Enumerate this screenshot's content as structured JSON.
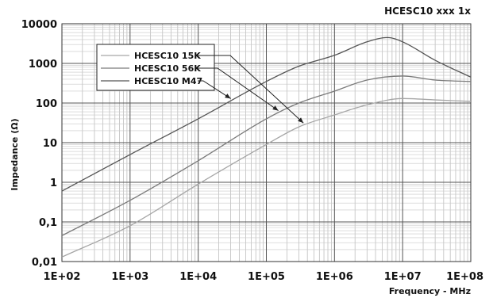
{
  "chart_data": {
    "type": "line",
    "title": "HCESC10 xxx 1x",
    "xlabel": "Frequency - MHz",
    "ylabel": "Impedance (Ω)",
    "xscale": "log",
    "yscale": "log",
    "xlim": [
      100,
      100000000
    ],
    "ylim": [
      0.01,
      10000
    ],
    "x_ticks": [
      {
        "value": 100,
        "label": "1E+02"
      },
      {
        "value": 1000,
        "label": "1E+03"
      },
      {
        "value": 10000,
        "label": "1E+04"
      },
      {
        "value": 100000,
        "label": "1E+05"
      },
      {
        "value": 1000000,
        "label": "1E+06"
      },
      {
        "value": 10000000,
        "label": "1E+07"
      },
      {
        "value": 100000000,
        "label": "1E+08"
      }
    ],
    "y_ticks": [
      {
        "value": 0.01,
        "label": "0,01"
      },
      {
        "value": 0.1,
        "label": "0,1"
      },
      {
        "value": 1,
        "label": "1"
      },
      {
        "value": 10,
        "label": "10"
      },
      {
        "value": 100,
        "label": "100"
      },
      {
        "value": 1000,
        "label": "1000"
      },
      {
        "value": 10000,
        "label": "10000"
      }
    ],
    "grid": true,
    "legend_position": "top-left",
    "series": [
      {
        "name": "HCESC10 15K",
        "color": "#a6a6a6",
        "points": [
          [
            100,
            0.013
          ],
          [
            1000,
            0.08
          ],
          [
            10000,
            0.9
          ],
          [
            100000,
            9
          ],
          [
            300000,
            25
          ],
          [
            1000000,
            50
          ],
          [
            3000000,
            90
          ],
          [
            10000000,
            130
          ],
          [
            30000000,
            120
          ],
          [
            100000000,
            110
          ]
        ]
      },
      {
        "name": "HCESC10 56K",
        "color": "#7a7a7a",
        "points": [
          [
            100,
            0.045
          ],
          [
            1000,
            0.35
          ],
          [
            10000,
            3.5
          ],
          [
            100000,
            40
          ],
          [
            300000,
            100
          ],
          [
            1000000,
            200
          ],
          [
            3000000,
            380
          ],
          [
            10000000,
            480
          ],
          [
            30000000,
            380
          ],
          [
            100000000,
            350
          ]
        ]
      },
      {
        "name": "HCESC10 M47",
        "color": "#555555",
        "points": [
          [
            100,
            0.6
          ],
          [
            1000,
            5
          ],
          [
            10000,
            40
          ],
          [
            100000,
            350
          ],
          [
            300000,
            850
          ],
          [
            1000000,
            1600
          ],
          [
            3000000,
            3500
          ],
          [
            6000000,
            4500
          ],
          [
            10000000,
            3500
          ],
          [
            30000000,
            1200
          ],
          [
            100000000,
            450
          ]
        ]
      }
    ]
  }
}
